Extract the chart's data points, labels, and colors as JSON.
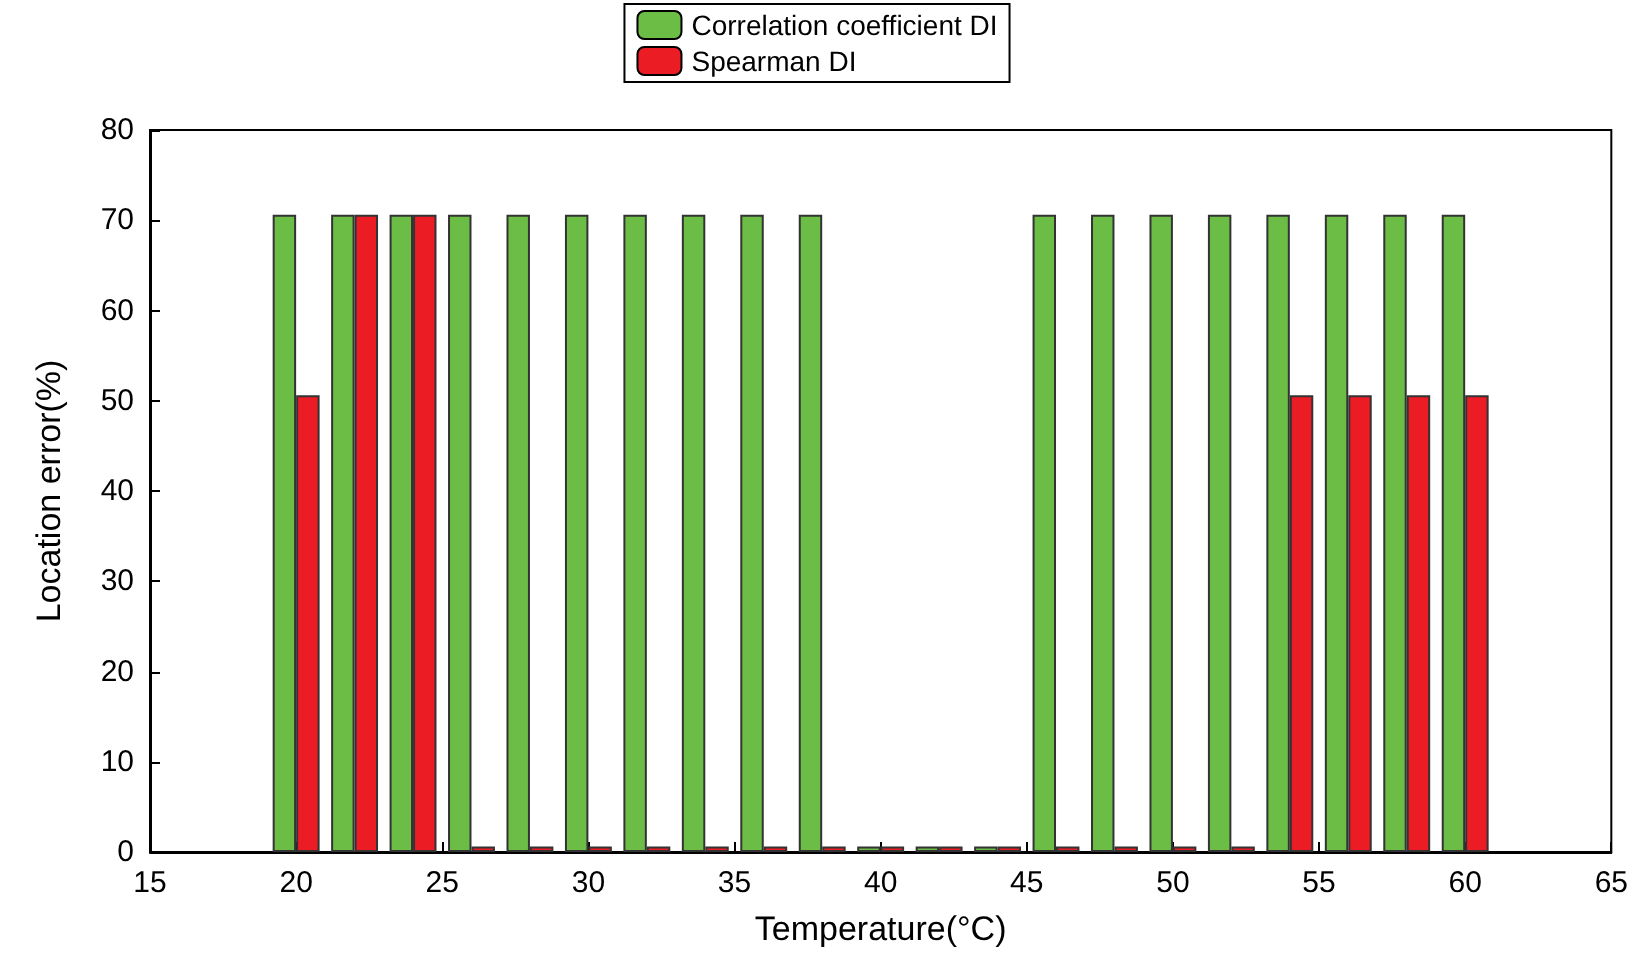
{
  "chart_data": {
    "type": "bar",
    "xlabel": "Temperature(°C)",
    "ylabel": "Location error(%)",
    "x": [
      20,
      22,
      24,
      26,
      28,
      30,
      32,
      34,
      36,
      38,
      40,
      42,
      44,
      46,
      48,
      50,
      52,
      54,
      56,
      58,
      60
    ],
    "series": [
      {
        "name": "Correlation coefficient DI",
        "color": "#6cbd45",
        "values": [
          70.6,
          70.6,
          70.6,
          70.6,
          70.6,
          70.6,
          70.6,
          70.6,
          70.6,
          70.6,
          0.6,
          0.6,
          0.6,
          70.6,
          70.6,
          70.6,
          70.6,
          70.6,
          70.6,
          70.6,
          70.6
        ]
      },
      {
        "name": "Spearman DI",
        "color": "#ec1c24",
        "values": [
          50.6,
          70.6,
          70.6,
          0.6,
          0.6,
          0.6,
          0.6,
          0.6,
          0.6,
          0.6,
          0.6,
          0.6,
          0.6,
          0.6,
          0.6,
          0.6,
          0.6,
          50.6,
          50.6,
          50.6,
          50.6
        ]
      }
    ],
    "xlim": [
      15,
      65
    ],
    "xticks": [
      15,
      20,
      25,
      30,
      35,
      40,
      45,
      50,
      55,
      60,
      65
    ],
    "ylim": [
      0,
      80
    ],
    "yticks": [
      0,
      10,
      20,
      30,
      40,
      50,
      60,
      70,
      80
    ],
    "grid": false,
    "legend": "top"
  }
}
